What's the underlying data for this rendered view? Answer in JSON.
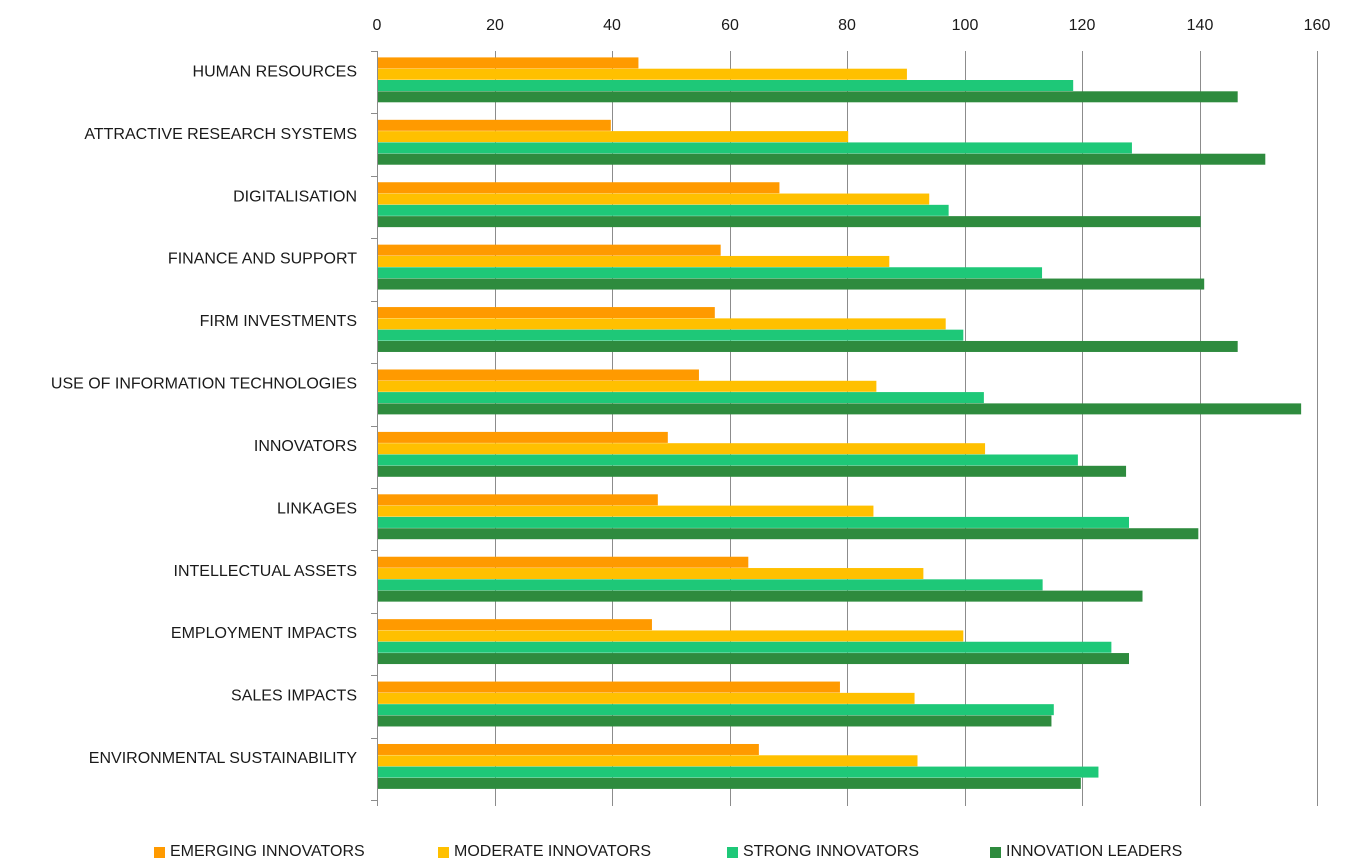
{
  "chart_data": {
    "type": "bar",
    "orientation": "horizontal",
    "title": "",
    "xlabel": "",
    "ylabel": "",
    "xlim": [
      0,
      160
    ],
    "ticks": [
      "0",
      "20",
      "40",
      "60",
      "80",
      "100",
      "120",
      "140",
      "160"
    ],
    "grid": true,
    "legend_position": "bottom",
    "categories": [
      "HUMAN RESOURCES",
      "ATTRACTIVE RESEARCH SYSTEMS",
      "DIGITALISATION",
      "FINANCE AND SUPPORT",
      "FIRM INVESTMENTS",
      "USE OF INFORMATION TECHNOLOGIES",
      "INNOVATORS",
      "LINKAGES",
      "INTELLECTUAL ASSETS",
      "EMPLOYMENT IMPACTS",
      "SALES IMPACTS",
      "ENVIRONMENTAL SUSTAINABILITY"
    ],
    "series": [
      {
        "name": "EMERGING INNOVATORS",
        "color": "#ff9a00",
        "values": [
          44.5,
          39.8,
          68.5,
          58.5,
          57.5,
          54.8,
          49.5,
          47.8,
          63.2,
          46.8,
          78.8,
          65.0
        ]
      },
      {
        "name": "MODERATE INNOVATORS",
        "color": "#ffc000",
        "values": [
          90.2,
          80.2,
          94.0,
          87.2,
          96.8,
          85.0,
          103.5,
          84.5,
          93.0,
          99.8,
          91.5,
          92.0
        ]
      },
      {
        "name": "STRONG INNOVATORS",
        "color": "#1ec878",
        "values": [
          118.5,
          128.5,
          97.3,
          113.2,
          99.8,
          103.3,
          119.3,
          128.0,
          113.3,
          125.0,
          115.2,
          122.8
        ]
      },
      {
        "name": "INNOVATION LEADERS",
        "color": "#2e8b3e",
        "values": [
          146.5,
          151.2,
          140.2,
          140.8,
          146.5,
          157.3,
          127.5,
          139.8,
          130.3,
          128.0,
          114.8,
          119.8
        ]
      }
    ]
  }
}
